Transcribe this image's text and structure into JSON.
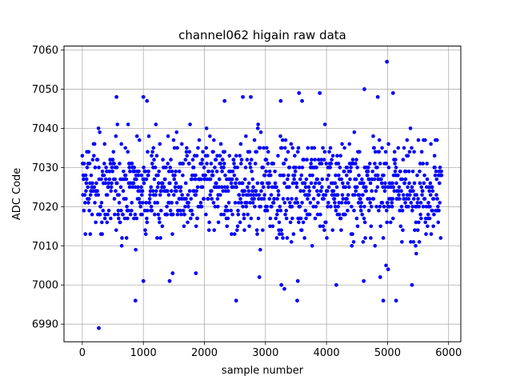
{
  "chart_data": {
    "type": "scatter",
    "title": "channel062 higain raw data",
    "xlabel": "sample number",
    "ylabel": "ADC Code",
    "xlim": [
      -300,
      6200
    ],
    "ylim": [
      6985.5,
      7061
    ],
    "xticks": [
      0,
      1000,
      2000,
      3000,
      4000,
      5000,
      6000
    ],
    "yticks": [
      6990,
      7000,
      7010,
      7020,
      7030,
      7040,
      7050,
      7060
    ],
    "xtick_labels": [
      "0",
      "1000",
      "2000",
      "3000",
      "4000",
      "5000",
      "6000"
    ],
    "ytick_labels": [
      "6990",
      "7000",
      "7010",
      "7020",
      "7030",
      "7040",
      "7050",
      "7060"
    ],
    "grid": true,
    "marker_color": "#0000ff",
    "n_samples": 5888,
    "dense_band": {
      "x_range": [
        0,
        5888
      ],
      "y_range": [
        7005,
        7041
      ],
      "center": 7025
    },
    "outliers": [
      {
        "x": 270,
        "y": 6989
      },
      {
        "x": 870,
        "y": 6996
      },
      {
        "x": 1000,
        "y": 7001
      },
      {
        "x": 1430,
        "y": 7001
      },
      {
        "x": 1480,
        "y": 7003
      },
      {
        "x": 1860,
        "y": 7003
      },
      {
        "x": 2520,
        "y": 6996
      },
      {
        "x": 2900,
        "y": 7002
      },
      {
        "x": 3260,
        "y": 7000
      },
      {
        "x": 3310,
        "y": 6999
      },
      {
        "x": 3520,
        "y": 6996
      },
      {
        "x": 3530,
        "y": 7001
      },
      {
        "x": 4160,
        "y": 7000
      },
      {
        "x": 4610,
        "y": 7001
      },
      {
        "x": 4880,
        "y": 7002
      },
      {
        "x": 4930,
        "y": 6996
      },
      {
        "x": 4990,
        "y": 7057
      },
      {
        "x": 5010,
        "y": 7004
      },
      {
        "x": 5140,
        "y": 6996
      },
      {
        "x": 5400,
        "y": 7000
      },
      {
        "x": 4620,
        "y": 7050
      },
      {
        "x": 5090,
        "y": 7049
      },
      {
        "x": 3550,
        "y": 7049
      },
      {
        "x": 3890,
        "y": 7049
      },
      {
        "x": 1000,
        "y": 7048
      },
      {
        "x": 2630,
        "y": 7048
      },
      {
        "x": 2760,
        "y": 7048
      },
      {
        "x": 4840,
        "y": 7048
      },
      {
        "x": 560,
        "y": 7048
      },
      {
        "x": 1060,
        "y": 7047
      },
      {
        "x": 2330,
        "y": 7047
      },
      {
        "x": 3250,
        "y": 7047
      },
      {
        "x": 3600,
        "y": 7047
      }
    ]
  }
}
